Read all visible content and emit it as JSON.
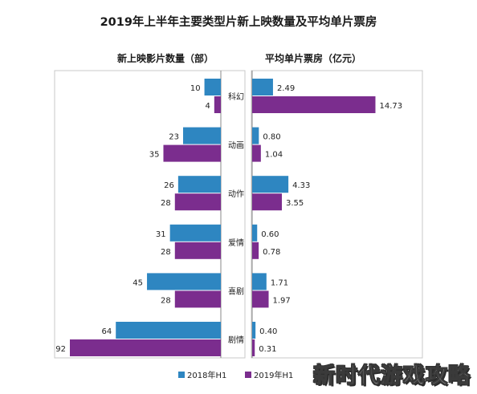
{
  "chart_data": {
    "type": "bar",
    "title": "2019年上半年主要类型片新上映数量及平均单片票房",
    "categories": [
      "科幻",
      "动画",
      "动作",
      "爱情",
      "喜剧",
      "剧情"
    ],
    "panels": [
      {
        "title": "新上映影片数量（部）",
        "series": [
          {
            "name": "2018年H1",
            "values": [
              10,
              23,
              26,
              31,
              45,
              64
            ]
          },
          {
            "name": "2019年H1",
            "values": [
              4,
              35,
              28,
              28,
              28,
              92
            ]
          }
        ]
      },
      {
        "title": "平均单片票房（亿元）",
        "series": [
          {
            "name": "2018年H1",
            "values": [
              2.49,
              0.8,
              4.33,
              0.6,
              1.71,
              0.4
            ]
          },
          {
            "name": "2019年H1",
            "values": [
              14.73,
              1.04,
              3.55,
              0.78,
              1.97,
              0.31
            ]
          }
        ]
      }
    ],
    "value_labels": {
      "left": [
        [
          "10",
          "4"
        ],
        [
          "23",
          "35"
        ],
        [
          "26",
          "28"
        ],
        [
          "31",
          "28"
        ],
        [
          "45",
          "28"
        ],
        [
          "64",
          "92"
        ]
      ],
      "right": [
        [
          "2.49",
          "14.73"
        ],
        [
          "0.80",
          "1.04"
        ],
        [
          "4.33",
          "3.55"
        ],
        [
          "0.60",
          "0.78"
        ],
        [
          "1.71",
          "1.97"
        ],
        [
          "0.40",
          "0.31"
        ]
      ]
    },
    "legend": [
      "2018年H1",
      "2019年H1"
    ],
    "legend_position": "bottom",
    "colors": {
      "2018年H1": "#2e86c1",
      "2019年H1": "#7b2d8e"
    }
  },
  "watermark": "新时代游戏攻略"
}
